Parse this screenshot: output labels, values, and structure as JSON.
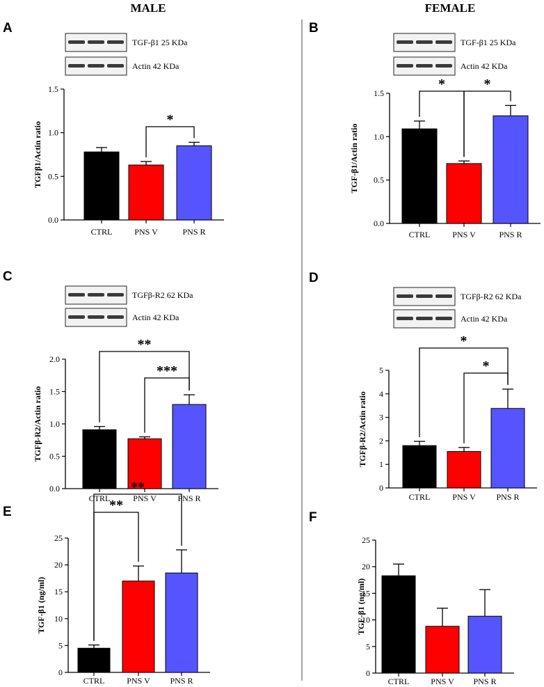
{
  "columns": {
    "male": "MALE",
    "female": "FEMALE"
  },
  "colors": {
    "CTRL": "#000000",
    "PNS V": "#ff0000",
    "PNS R": "#5555ff",
    "divider": "#444444",
    "band": "#1a1a1a"
  },
  "chart_data": [
    {
      "panel": "A",
      "type": "bar",
      "ylabel": "TGFβ1/Actin ratio",
      "ylim": [
        0,
        1.5
      ],
      "yticks": [
        "0.0",
        "0.5",
        "1.0",
        "1.5"
      ],
      "categories": [
        "CTRL",
        "PNS V",
        "PNS R"
      ],
      "values": [
        0.78,
        0.63,
        0.85
      ],
      "errors": [
        0.05,
        0.04,
        0.04
      ],
      "blots": [
        {
          "label": "TGF-β1 25 KDa"
        },
        {
          "label": "Actin 42 KDa"
        }
      ],
      "significance": [
        {
          "from": 1,
          "to": 2,
          "label": "*"
        }
      ]
    },
    {
      "panel": "B",
      "type": "bar",
      "ylabel": "TGF-β1/Actin ratio",
      "ylim": [
        0,
        1.5
      ],
      "yticks": [
        "0.0",
        "0.5",
        "1.0",
        "1.5"
      ],
      "categories": [
        "CTRL",
        "PNS V",
        "PNS R"
      ],
      "values": [
        1.09,
        0.69,
        1.24
      ],
      "errors": [
        0.09,
        0.03,
        0.12
      ],
      "blots": [
        {
          "label": "TGF-β1 25 KDa"
        },
        {
          "label": "Actin 42 KDa"
        }
      ],
      "significance": [
        {
          "from": 0,
          "to": 1,
          "label": "*"
        },
        {
          "from": 1,
          "to": 2,
          "label": "*"
        }
      ]
    },
    {
      "panel": "C",
      "type": "bar",
      "ylabel": "TGFβ-R2/Actin ratio",
      "ylim": [
        0,
        2.0
      ],
      "yticks": [
        "0.0",
        "0.5",
        "1.0",
        "1.5",
        "2.0"
      ],
      "categories": [
        "CTRL",
        "PNS V",
        "PNS R"
      ],
      "values": [
        0.91,
        0.77,
        1.3
      ],
      "errors": [
        0.05,
        0.03,
        0.15
      ],
      "blots": [
        {
          "label": "TGFβ-R2 62 KDa"
        },
        {
          "label": "Actin 42 KDa"
        }
      ],
      "significance": [
        {
          "from": 0,
          "to": 2,
          "label": "**"
        },
        {
          "from": 1,
          "to": 2,
          "label": "***"
        }
      ]
    },
    {
      "panel": "D",
      "type": "bar",
      "ylabel": "TGFβ-R2/Actin ratio",
      "ylim": [
        0,
        5
      ],
      "yticks": [
        "0",
        "1",
        "2",
        "3",
        "4",
        "5"
      ],
      "categories": [
        "CTRL",
        "PNS V",
        "PNS R"
      ],
      "values": [
        1.8,
        1.55,
        3.38
      ],
      "errors": [
        0.18,
        0.17,
        0.82
      ],
      "blots": [
        {
          "label": "TGFβ-R2 62 KDa"
        },
        {
          "label": "Actin 42 KDa"
        }
      ],
      "significance": [
        {
          "from": 0,
          "to": 2,
          "label": "*"
        },
        {
          "from": 1,
          "to": 2,
          "label": "*"
        }
      ]
    },
    {
      "panel": "E",
      "type": "bar",
      "ylabel": "TGF-β1 (ng/ml)",
      "ylim": [
        0,
        25
      ],
      "yticks": [
        "0",
        "5",
        "10",
        "15",
        "20",
        "25"
      ],
      "categories": [
        "CTRL",
        "PNS V",
        "PNS R"
      ],
      "values": [
        4.5,
        17.0,
        18.5
      ],
      "errors": [
        0.6,
        2.8,
        4.3
      ],
      "blots": [],
      "significance": [
        {
          "from": 0,
          "to": 1,
          "label": "**"
        },
        {
          "from": 0,
          "to": 2,
          "label": "**"
        }
      ]
    },
    {
      "panel": "F",
      "type": "bar",
      "ylabel": "TGF-β1 (ng/ml)",
      "ylim": [
        0,
        25
      ],
      "yticks": [
        "0",
        "5",
        "10",
        "15",
        "20",
        "25"
      ],
      "categories": [
        "CTRL",
        "PNS V",
        "PNS R"
      ],
      "values": [
        18.3,
        8.8,
        10.7
      ],
      "errors": [
        2.2,
        3.4,
        5.0
      ],
      "blots": [],
      "significance": []
    }
  ]
}
